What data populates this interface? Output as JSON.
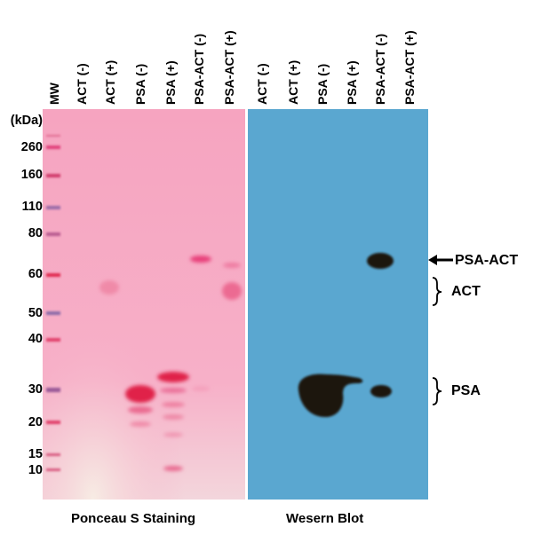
{
  "figure": {
    "lane_labels": [
      "MW",
      "ACT (-)",
      "ACT (+)",
      "PSA (-)",
      "PSA (+)",
      "PSA-ACT (-)",
      "PSA-ACT (+)",
      "ACT (-)",
      "ACT (+)",
      "PSA (-)",
      "PSA (+)",
      "PSA-ACT (-)",
      "PSA-ACT (+)"
    ],
    "mw_unit": "(kDa)",
    "mw_markers": [
      "260",
      "160",
      "110",
      "80",
      "60",
      "50",
      "40",
      "30",
      "20",
      "15",
      "10"
    ],
    "right_labels": {
      "psa_act": "PSA-ACT",
      "act": "ACT",
      "psa": "PSA"
    },
    "captions": {
      "left": "Ponceau S Staining",
      "right": "Wesern Blot"
    },
    "colors": {
      "ponceau_background": "#f7a8c4",
      "western_background": "#5aa7d0",
      "band_dark": "#1a1410",
      "band_pink": "#e02a5a"
    }
  }
}
